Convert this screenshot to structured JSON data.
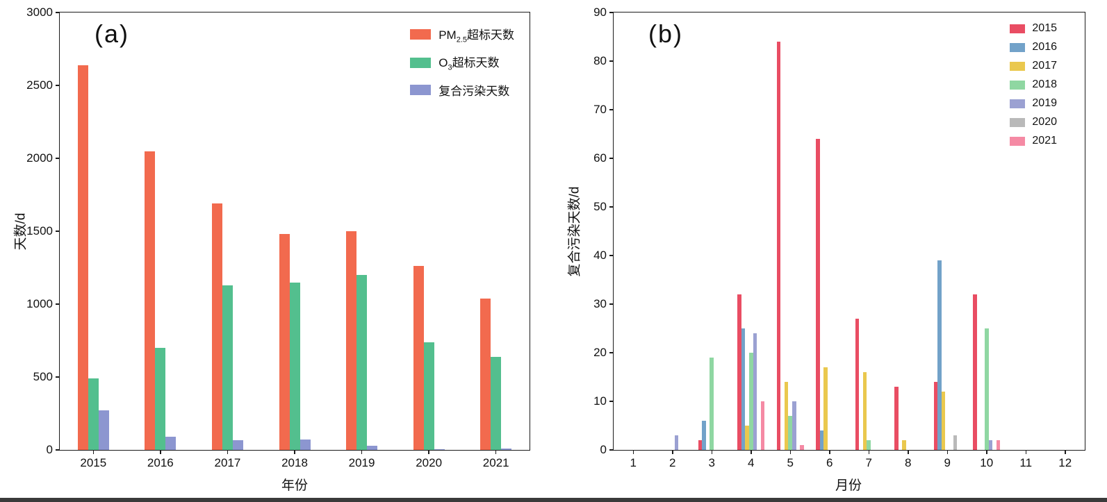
{
  "figure": {
    "background": "#ffffff",
    "axis_color": "#1a1a1a",
    "bottom_bar_color": "#3a3a3a"
  },
  "chart_data": [
    {
      "type": "bar",
      "panel": "a",
      "title": "(a)",
      "xlabel": "年份",
      "ylabel": "天数/d",
      "ylim": [
        0,
        3000
      ],
      "ytick_step": 500,
      "grid": false,
      "legend_position": "top-right-inside",
      "categories": [
        "2015",
        "2016",
        "2017",
        "2018",
        "2019",
        "2020",
        "2021"
      ],
      "series": [
        {
          "name": "PM2.5超标天数",
          "color": "#f26a4e",
          "values": [
            2640,
            2050,
            1690,
            1480,
            1500,
            1260,
            1040
          ]
        },
        {
          "name": "O3超标天数",
          "color": "#53bf8e",
          "values": [
            490,
            700,
            1130,
            1150,
            1200,
            740,
            640
          ]
        },
        {
          "name": "复合污染天数",
          "color": "#8c96d0",
          "values": [
            270,
            90,
            65,
            70,
            30,
            5,
            10
          ]
        }
      ]
    },
    {
      "type": "bar",
      "panel": "b",
      "title": "(b)",
      "xlabel": "月份",
      "ylabel": "复合污染天数/d",
      "ylim": [
        0,
        90
      ],
      "ytick_step": 10,
      "grid": false,
      "legend_position": "top-right-inside",
      "categories": [
        "1",
        "2",
        "3",
        "4",
        "5",
        "6",
        "7",
        "8",
        "9",
        "10",
        "11",
        "12"
      ],
      "series": [
        {
          "name": "2015",
          "color": "#e94d63",
          "values": [
            0,
            0,
            2,
            32,
            84,
            64,
            27,
            13,
            14,
            32,
            0,
            0
          ]
        },
        {
          "name": "2016",
          "color": "#72a2c9",
          "values": [
            0,
            0,
            6,
            25,
            0,
            4,
            0,
            0,
            39,
            0,
            0,
            0
          ]
        },
        {
          "name": "2017",
          "color": "#eac84e",
          "values": [
            0,
            0,
            0,
            5,
            14,
            17,
            16,
            2,
            12,
            0,
            0,
            0
          ]
        },
        {
          "name": "2018",
          "color": "#8fd7a2",
          "values": [
            0,
            0,
            19,
            20,
            7,
            0,
            2,
            0,
            0,
            25,
            0,
            0
          ]
        },
        {
          "name": "2019",
          "color": "#9ba1d2",
          "values": [
            0,
            3,
            0,
            24,
            10,
            0,
            0,
            0,
            0,
            2,
            0,
            0
          ]
        },
        {
          "name": "2020",
          "color": "#b9b9b9",
          "values": [
            0,
            0,
            0,
            0,
            0,
            0,
            0,
            0,
            3,
            0,
            0,
            0
          ]
        },
        {
          "name": "2021",
          "color": "#f58aa4",
          "values": [
            0,
            0,
            0,
            10,
            1,
            0,
            0,
            0,
            0,
            2,
            0,
            0
          ]
        }
      ]
    }
  ]
}
